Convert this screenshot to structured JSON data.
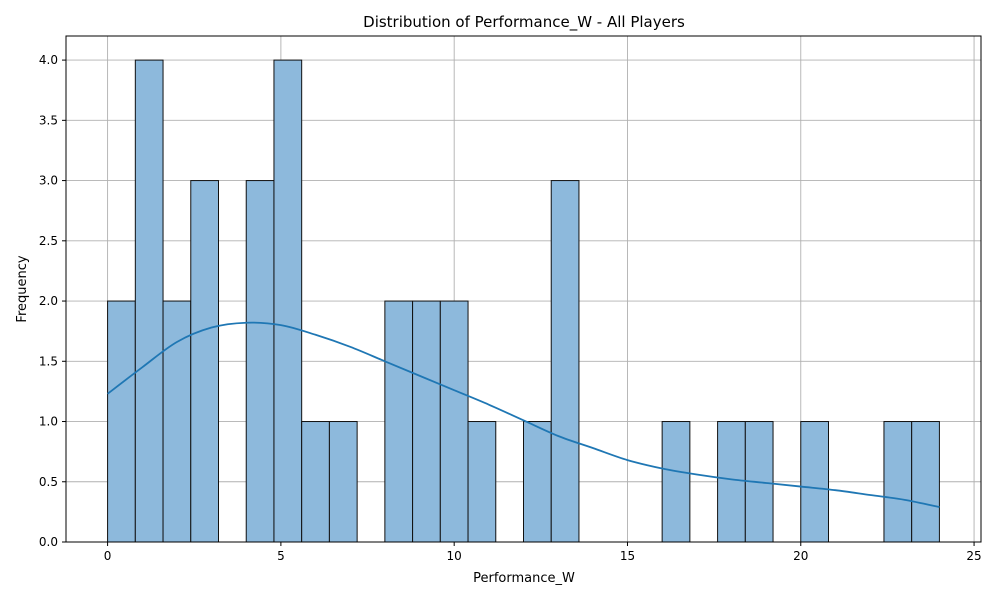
{
  "chart_data": {
    "type": "bar",
    "subtype": "histogram_with_kde",
    "title": "Distribution of Performance_W - All Players",
    "xlabel": "Performance_W",
    "ylabel": "Frequency",
    "xlim": [
      -1.2,
      25.2
    ],
    "ylim": [
      0,
      4.2
    ],
    "x_ticks": [
      0,
      5,
      10,
      15,
      20,
      25
    ],
    "x_tick_labels": [
      "0",
      "5",
      "10",
      "15",
      "20",
      "25"
    ],
    "y_ticks": [
      0,
      0.5,
      1.0,
      1.5,
      2.0,
      2.5,
      3.0,
      3.5,
      4.0
    ],
    "y_tick_labels": [
      "0.0",
      "0.5",
      "1.0",
      "1.5",
      "2.0",
      "2.5",
      "3.0",
      "3.5",
      "4.0"
    ],
    "grid": true,
    "bin_edges": [
      0,
      0.8,
      1.6,
      2.4,
      3.2,
      4.0,
      4.8,
      5.6,
      6.4,
      7.2,
      8.0,
      8.8,
      9.6,
      10.4,
      11.2,
      12.0,
      12.8,
      13.6,
      14.4,
      15.2,
      16.0,
      16.8,
      17.6,
      18.4,
      19.2,
      20.0,
      20.8,
      21.6,
      22.4,
      23.2,
      24.0
    ],
    "values": [
      2,
      4,
      2,
      3,
      0,
      3,
      4,
      1,
      1,
      0,
      2,
      2,
      2,
      1,
      0,
      1,
      3,
      0,
      0,
      0,
      1,
      0,
      1,
      1,
      0,
      1,
      0,
      0,
      1,
      1
    ],
    "kde": {
      "x": [
        0,
        1,
        2,
        3,
        4,
        5,
        6,
        7,
        8,
        9,
        10,
        11,
        12,
        13,
        14,
        15,
        16,
        17,
        18,
        19,
        20,
        21,
        22,
        23,
        24
      ],
      "y": [
        1.23,
        1.45,
        1.66,
        1.78,
        1.82,
        1.8,
        1.72,
        1.62,
        1.5,
        1.38,
        1.26,
        1.14,
        1.01,
        0.88,
        0.78,
        0.68,
        0.61,
        0.56,
        0.52,
        0.49,
        0.46,
        0.43,
        0.39,
        0.35,
        0.29
      ]
    },
    "colors": {
      "bar_fill": "#8db9dc",
      "bar_edge": "#111111",
      "kde_line": "#1f77b4",
      "grid": "#b0b0b0"
    }
  }
}
